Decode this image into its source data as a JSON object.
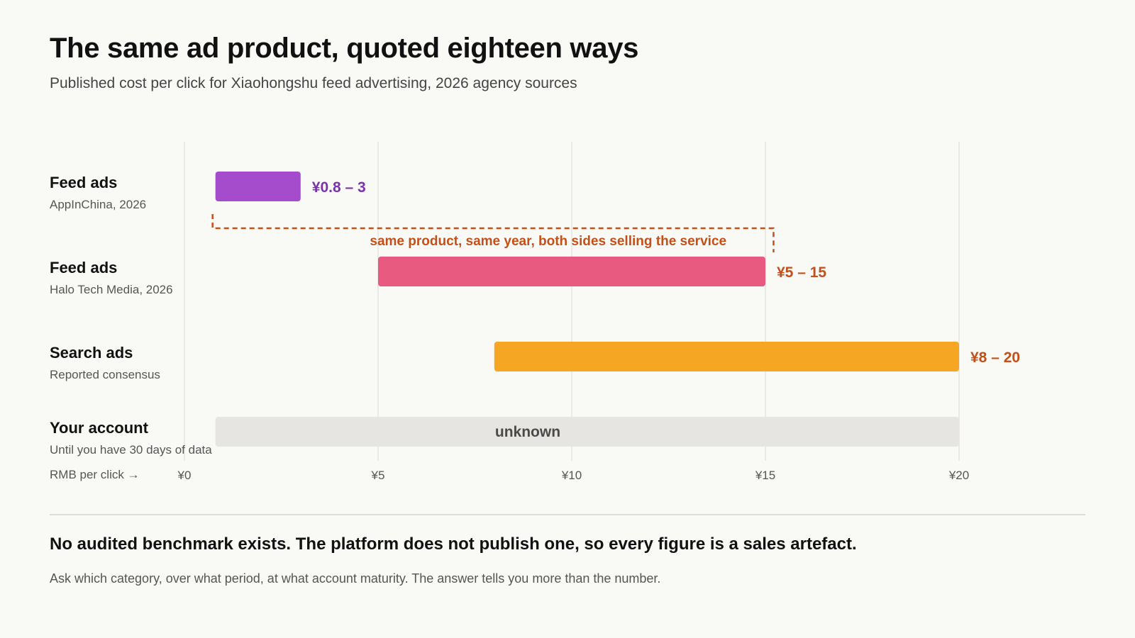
{
  "header": {
    "title": "The same ad product, quoted eighteen ways",
    "subtitle": "Published cost per click for Xiaohongshu feed advertising, 2026 agency sources"
  },
  "rows": [
    {
      "label": "Feed ads",
      "source": "AppInChina, 2026"
    },
    {
      "label": "Feed ads",
      "source": "Halo Tech Media, 2026"
    },
    {
      "label": "Search ads",
      "source": "Reported consensus"
    },
    {
      "label": "Your account",
      "source": "Until you have 30 days of data"
    }
  ],
  "axis_caption": "RMB per click →",
  "chart_data": {
    "type": "bar",
    "orientation": "horizontal-range",
    "xlim": [
      0,
      20
    ],
    "ticks": [
      {
        "value": 0,
        "label": "¥0"
      },
      {
        "value": 5,
        "label": "¥5"
      },
      {
        "value": 10,
        "label": "¥10"
      },
      {
        "value": 15,
        "label": "¥15"
      },
      {
        "value": 20,
        "label": "¥20"
      }
    ],
    "grid": true,
    "series": [
      {
        "category": "Feed ads — AppInChina, 2026",
        "low": 0.8,
        "high": 3,
        "label": "¥0.8 – 3",
        "color": "#a54ccd",
        "label_color": "#7b34a8"
      },
      {
        "category": "Feed ads — Halo Tech Media, 2026",
        "low": 5,
        "high": 15,
        "label": "¥5 – 15",
        "color": "#e85a80",
        "label_color": "#c2501a"
      },
      {
        "category": "Search ads — Reported consensus",
        "low": 8,
        "high": 20,
        "label": "¥8 – 20",
        "color": "#f5a623",
        "label_color": "#c2501a"
      },
      {
        "category": "Your account — Until you have 30 days of data",
        "low": 0.8,
        "high": 20,
        "label": "unknown",
        "color": "#e6e5e2",
        "label_color": "#4a4a4a",
        "label_inside": true
      }
    ],
    "annotation": {
      "text": "same product, same year, both sides selling the service",
      "from": 0.8,
      "to": 15.1,
      "color": "#c2501a"
    }
  },
  "footer": {
    "takeaway": "No audited benchmark exists. The platform does not publish one, so every figure is a sales artefact.",
    "note": "Ask which category, over what period, at what account maturity. The answer tells you more than the number."
  }
}
